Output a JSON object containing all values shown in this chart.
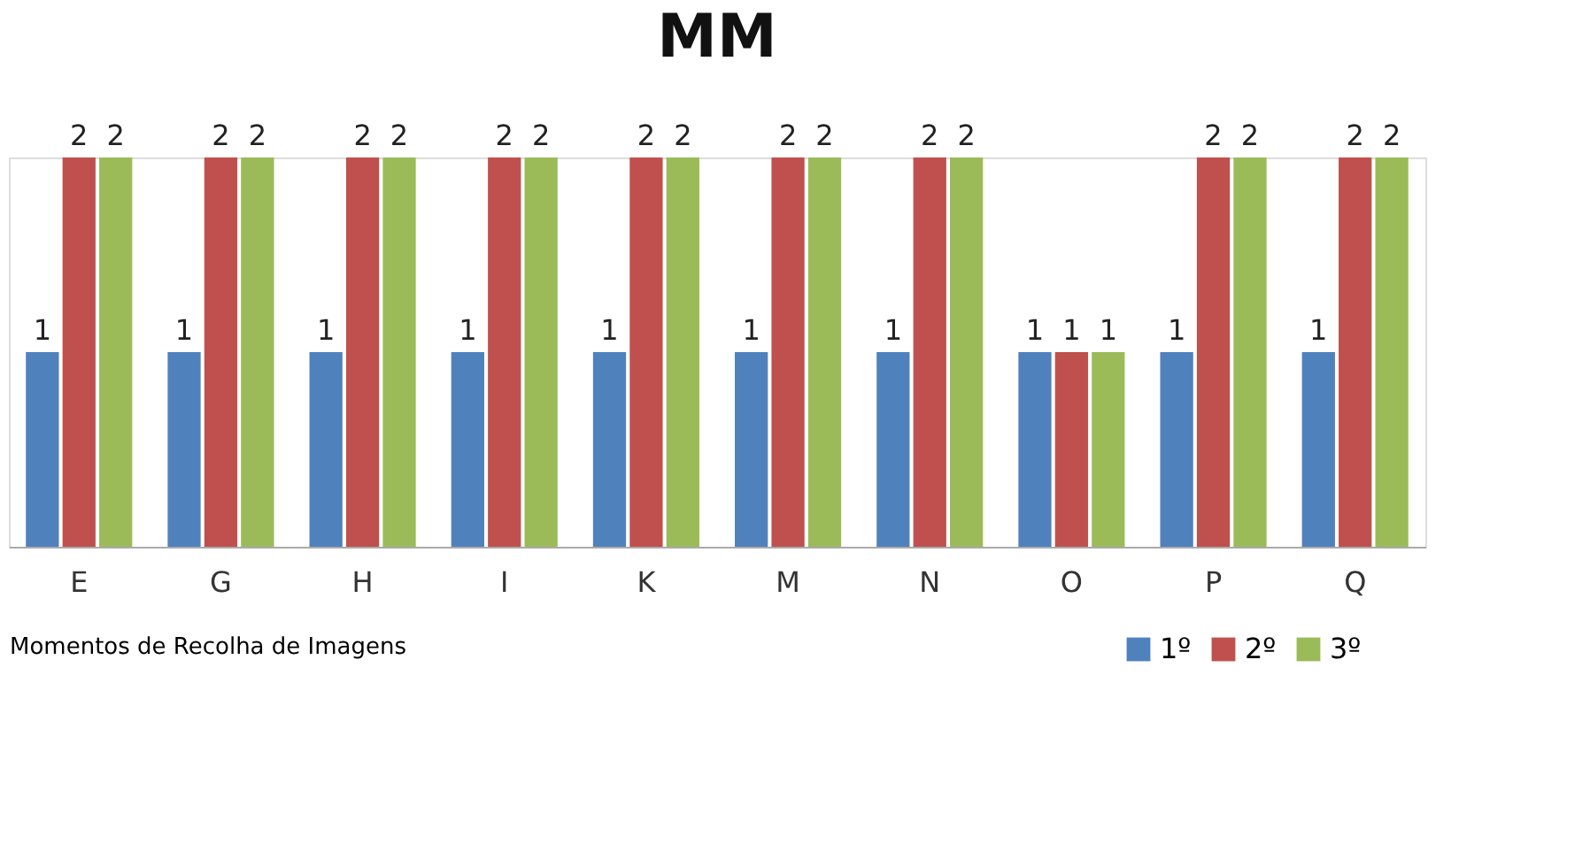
{
  "chart_data": {
    "type": "bar",
    "title": "MM",
    "xlabel": "Momentos de Recolha de Imagens",
    "categories": [
      "E",
      "G",
      "H",
      "I",
      "K",
      "M",
      "N",
      "O",
      "P",
      "Q"
    ],
    "series": [
      {
        "name": "1º",
        "color": "#4f81bd",
        "values": [
          1,
          1,
          1,
          1,
          1,
          1,
          1,
          1,
          1,
          1
        ]
      },
      {
        "name": "2º",
        "color": "#c0504d",
        "values": [
          2,
          2,
          2,
          2,
          2,
          2,
          2,
          1,
          2,
          2
        ]
      },
      {
        "name": "3º",
        "color": "#9bbb59",
        "values": [
          2,
          2,
          2,
          2,
          2,
          2,
          2,
          1,
          2,
          2
        ]
      }
    ],
    "data_labels": true,
    "legend": "bottom right",
    "grid": false
  }
}
